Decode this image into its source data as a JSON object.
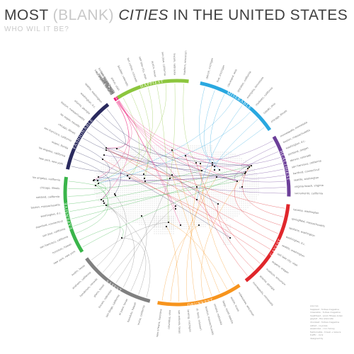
{
  "header": {
    "title_most": "MOST",
    "title_blank": "(BLANK)",
    "title_cities": "CITIES",
    "title_rest": "IN THE UNITED STATES",
    "subtitle": "WHO WIL IT BE?"
  },
  "categories": [
    {
      "name": "HAPPIEST",
      "color": "#8cc63e",
      "cities": [
        "provo, utah",
        "boulder, colorado",
        "fort collins, colorado",
        "salt lake city, utah",
        "austin, texas",
        "san jose, california",
        "lincoln, nebraska",
        "madison, wisconsin"
      ]
    },
    {
      "name": "MISERABLE",
      "color": "#29a8e0",
      "cities": [
        "detroit, michigan",
        "flint, michigan",
        "cleveland, ohio",
        "stockton, california",
        "memphis, tennessee",
        "modesto, california",
        "toledo, ohio",
        "chicago, illinois"
      ]
    },
    {
      "name": "HEALTHIEST",
      "color": "#6c3f99",
      "cities": [
        "minneapolis, minnesota",
        "boston, massachusetts",
        "washington, d.c.",
        "portland, oregon",
        "denver, colorado",
        "san francisco, california",
        "hartford, connecticut",
        "seattle, washington",
        "virginia beach, virginia",
        "sacramento, california"
      ]
    },
    {
      "name": "GAYEST",
      "color": "#e0262b",
      "cities": [
        "tacoma, washington",
        "springfield, massachusetts",
        "spokane, washington",
        "washington, d.c.",
        "seattle, washington",
        "salt lake city, utah",
        "eugene, oregon",
        "madison, wisconsin",
        "atlanta, georgia",
        "minneapolis, minnesota"
      ]
    },
    {
      "name": "DRUNKEST",
      "color": "#f7941d",
      "cities": [
        "milwaukee, wisconsin",
        "austin, texas",
        "fargo, north dakota",
        "omaha, nebraska",
        "boston, massachusetts",
        "st. louis, missouri",
        "lansing, michigan",
        "san antonio, texas",
        "columbus, ohio",
        "new orleans, louisiana"
      ]
    },
    {
      "name": "SAFEST",
      "color": "#808080",
      "cities": [
        "irvine, california",
        "honolulu, hawaii",
        "el paso, texas",
        "san diego, california",
        "lincoln, nebraska",
        "plano, texas",
        "henderson, nevada",
        "anaheim, california",
        "austin, texas"
      ]
    },
    {
      "name": "EXPENSIVE",
      "color": "#3ab54a",
      "cities": [
        "new york, new york",
        "honolulu, hawaii",
        "san francisco, california",
        "san jose, california",
        "stamford, connecticut",
        "washington, d.c.",
        "boston, massachusetts",
        "oakland, california",
        "chicago, illinois",
        "los angeles, california"
      ]
    },
    {
      "name": "FASHIONABLE",
      "color": "#2a2a5e",
      "cities": [
        "new york, new york",
        "los angeles, california",
        "miami, florida",
        "san francisco, california",
        "chicago, illinois",
        "las vegas, nevada",
        "boston, massachusetts",
        "atlanta, georgia",
        "washington, d.c.",
        "seattle, washington"
      ]
    },
    {
      "name": "TRAFFIC",
      "color": "#ec1e79",
      "cities": [
        "los angeles, california",
        "san francisco, california",
        "washington, d.c.",
        "new york, new york",
        "chicago, illinois",
        "dallas, texas",
        "houston, texas",
        "miami, florida",
        "seattle, washington",
        "boston, massachusetts"
      ]
    }
  ],
  "footnote": {
    "label": "sources",
    "lines": [
      "happiest - forbes magazine",
      "miserable - forbes magazine",
      "healthiest - acsm fitness index",
      "gayest - the advocate",
      "drunkest - forbes magazine",
      "safest - cq press",
      "expensive - cnn money",
      "fashionable - travel + leisure",
      "traffic - inrix"
    ],
    "credit": "designed by"
  }
}
